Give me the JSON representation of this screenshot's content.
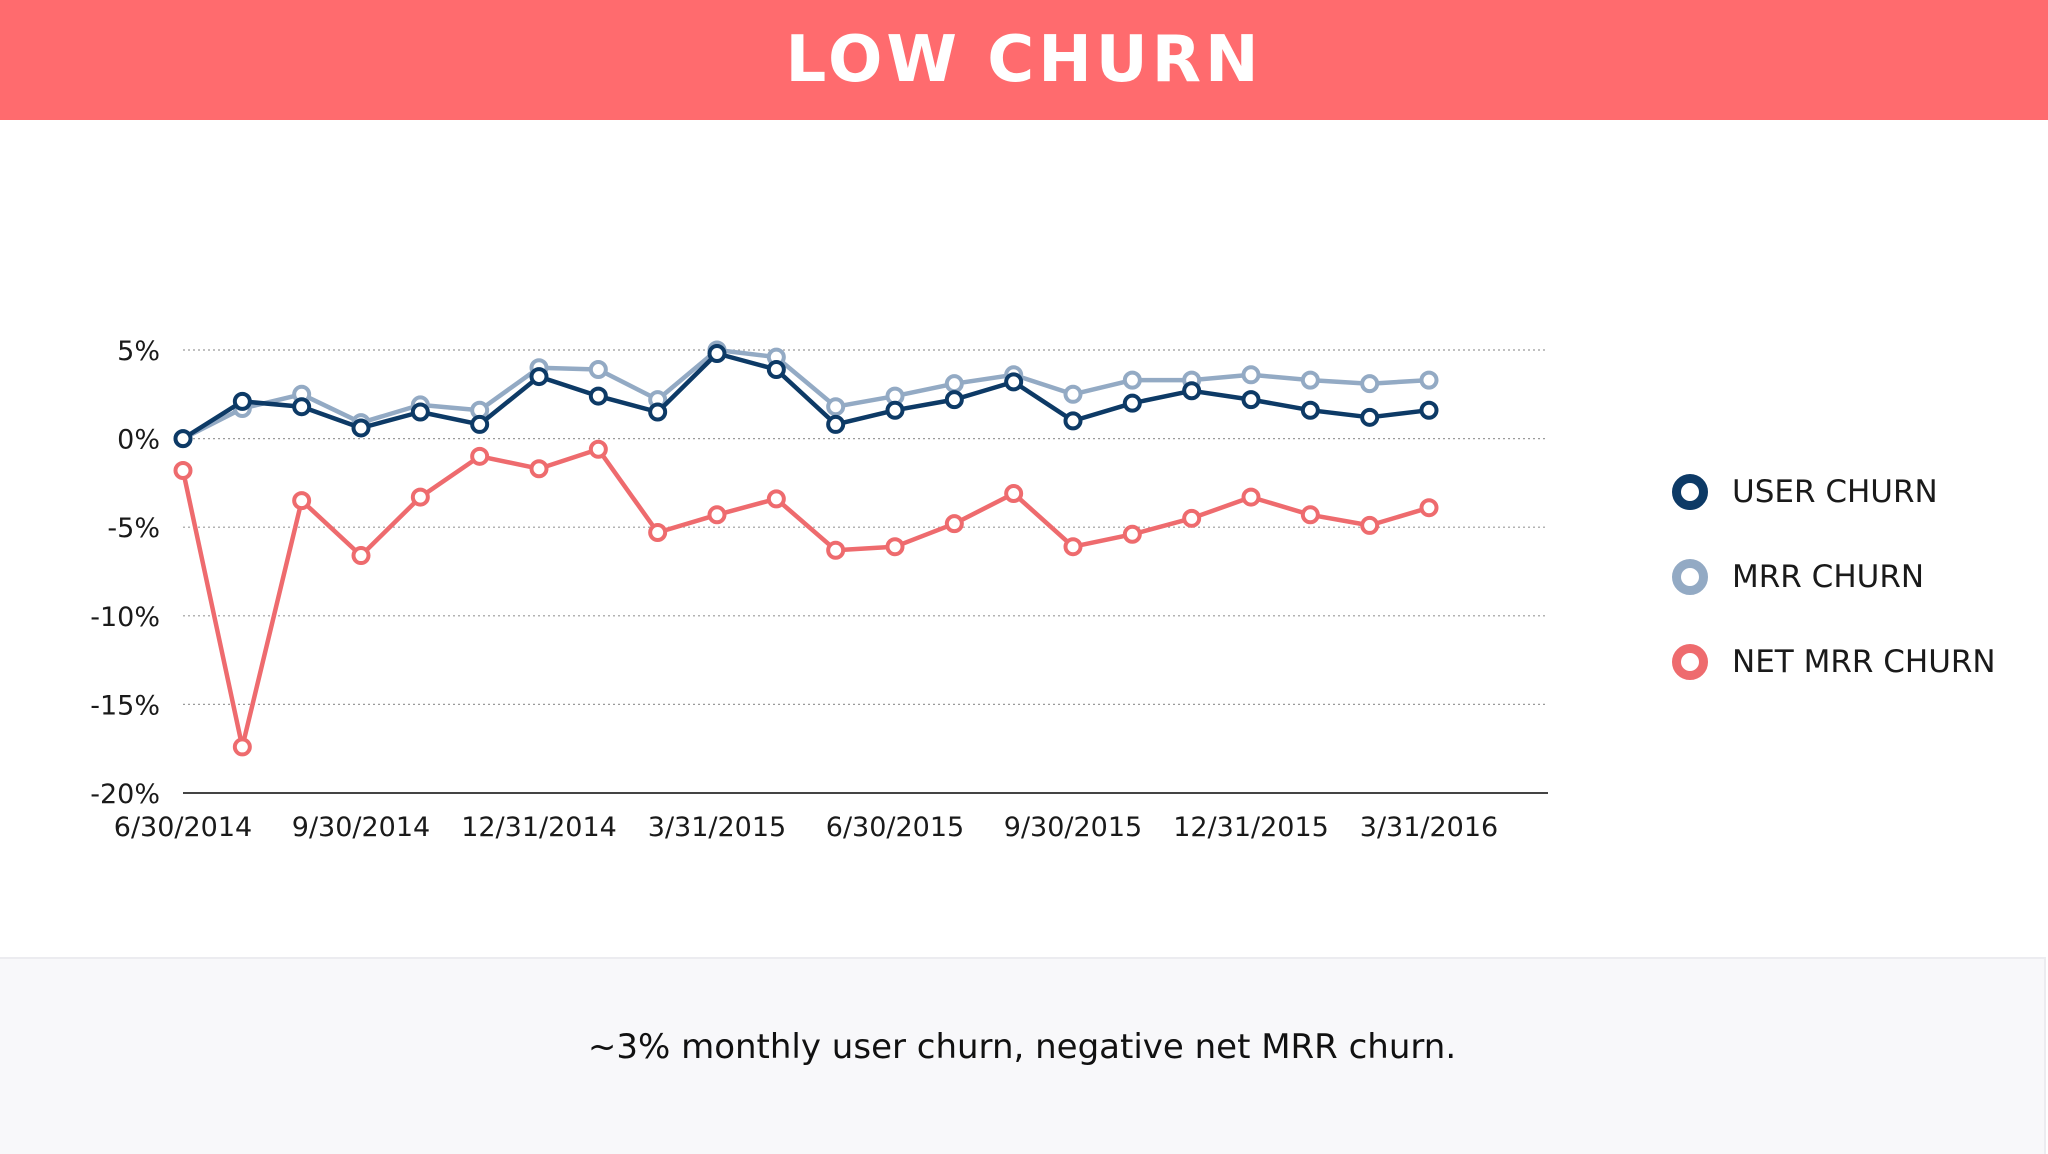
{
  "header": {
    "title": "LOW CHURN"
  },
  "footer": {
    "caption": "~3% monthly user churn, negative net MRR churn."
  },
  "colors": {
    "header_bg": "#ff6b6e",
    "user_churn": "#0d3a66",
    "mrr_churn": "#93aac4",
    "net_mrr_churn": "#ee6b6e"
  },
  "chart_data": {
    "type": "line",
    "x": [
      "6/30/2014",
      "7/31/2014",
      "8/31/2014",
      "9/30/2014",
      "10/31/2014",
      "11/30/2014",
      "12/31/2014",
      "1/31/2015",
      "2/28/2015",
      "3/31/2015",
      "4/30/2015",
      "5/31/2015",
      "6/30/2015",
      "7/31/2015",
      "8/31/2015",
      "9/30/2015",
      "10/31/2015",
      "11/30/2015",
      "12/31/2015",
      "1/31/2016",
      "2/29/2016",
      "3/31/2016"
    ],
    "x_tick_labels": [
      "6/30/2014",
      "9/30/2014",
      "12/31/2014",
      "3/31/2015",
      "6/30/2015",
      "9/30/2015",
      "12/31/2015",
      "3/31/2016"
    ],
    "y_tick_labels": [
      "5%",
      "0%",
      "-5%",
      "-10%",
      "-15%",
      "-20%"
    ],
    "y_ticks": [
      5,
      0,
      -5,
      -10,
      -15,
      -20
    ],
    "ylim": [
      -20,
      5
    ],
    "grid": true,
    "legend_position": "right",
    "series": [
      {
        "name": "USER CHURN",
        "color": "#0d3a66",
        "values": [
          0.0,
          2.1,
          1.8,
          0.6,
          1.5,
          0.8,
          3.5,
          2.4,
          1.5,
          4.8,
          3.9,
          0.8,
          1.6,
          2.2,
          3.2,
          1.0,
          2.0,
          2.7,
          2.2,
          1.6,
          1.2,
          1.6
        ]
      },
      {
        "name": "MRR CHURN",
        "color": "#93aac4",
        "values": [
          0.0,
          1.7,
          2.5,
          0.9,
          1.9,
          1.6,
          4.0,
          3.9,
          2.2,
          5.0,
          4.6,
          1.8,
          2.4,
          3.1,
          3.6,
          2.5,
          3.3,
          3.3,
          3.6,
          3.3,
          3.1,
          3.3
        ]
      },
      {
        "name": "NET MRR CHURN",
        "color": "#ee6b6e",
        "values": [
          -1.8,
          -17.4,
          -3.5,
          -6.6,
          -3.3,
          -1.0,
          -1.7,
          -0.6,
          -5.3,
          -4.3,
          -3.4,
          -6.3,
          -6.1,
          -4.8,
          -3.1,
          -6.1,
          -5.4,
          -4.5,
          -3.3,
          -4.3,
          -4.9,
          -3.9
        ]
      }
    ]
  }
}
